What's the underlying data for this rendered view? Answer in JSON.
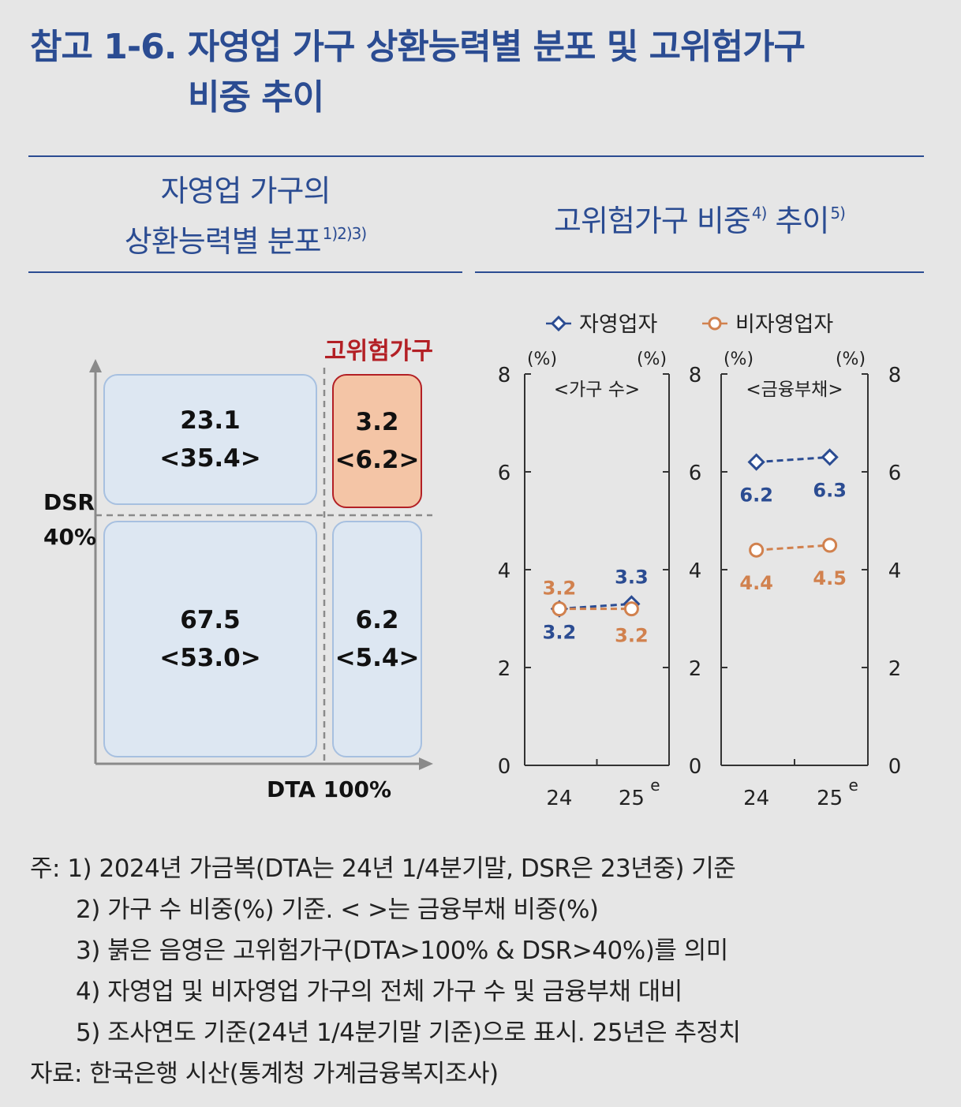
{
  "title": {
    "line1": "참고 1-6. 자영업 가구 상환능력별 분포 및 고위험가구",
    "line2": "비중 추이"
  },
  "left_panel": {
    "title_line1": "자영업 가구의",
    "title_line2": "상환능력별 분포",
    "title_notes": "1)2)3)",
    "risk_label": "고위험가구",
    "y_axis_label_1": "DSR",
    "y_axis_label_2": "40%",
    "x_axis_label": "DTA 100%",
    "cells": {
      "top_left": {
        "value": "23.1",
        "sub": "<35.4>"
      },
      "top_right": {
        "value": "3.2",
        "sub": "<6.2>"
      },
      "bottom_left": {
        "value": "67.5",
        "sub": "<53.0>"
      },
      "bottom_right": {
        "value": "6.2",
        "sub": "<5.4>"
      }
    }
  },
  "right_panel": {
    "title_main": "고위험가구 비중",
    "title_note1": "4)",
    "title_mid": "추이",
    "title_note2": "5)"
  },
  "notes": [
    "주:  1) 2024년 가금복(DTA는 24년 1/4분기말, DSR은 23년중) 기준",
    "2) 가구 수 비중(%) 기준. <     >는 금융부채 비중(%)",
    "3) 붉은 음영은 고위험가구(DTA>100% & DSR>40%)를 의미",
    "4) 자영업 및 비자영업 가구의 전체 가구 수 및 금융부채 대비",
    "5) 조사연도 기준(24년 1/4분기말 기준)으로 표시. 25년은 추정치"
  ],
  "source": "자료:  한국은행 시산(통계청 가계금융복지조사)",
  "chart_data": [
    {
      "type": "line",
      "title": "<가구 수>",
      "categories": [
        "24",
        "25"
      ],
      "category_suffix": [
        "",
        "e"
      ],
      "ylabel_left": "(%)",
      "ylabel_right": "(%)",
      "ylim": [
        0,
        8
      ],
      "yticks": [
        0,
        2,
        4,
        6,
        8
      ],
      "series": [
        {
          "name": "자영업자",
          "values": [
            3.2,
            3.3
          ],
          "color": "#2b4c92",
          "marker": "diamond"
        },
        {
          "name": "비자영업자",
          "values": [
            3.2,
            3.2
          ],
          "color": "#d1814e",
          "marker": "circle"
        }
      ]
    },
    {
      "type": "line",
      "title": "<금융부채>",
      "categories": [
        "24",
        "25"
      ],
      "category_suffix": [
        "",
        "e"
      ],
      "ylabel_left": "(%)",
      "ylabel_right": "(%)",
      "ylim": [
        0,
        8
      ],
      "yticks": [
        0,
        2,
        4,
        6,
        8
      ],
      "series": [
        {
          "name": "자영업자",
          "values": [
            6.2,
            6.3
          ],
          "color": "#2b4c92",
          "marker": "diamond"
        },
        {
          "name": "비자영업자",
          "values": [
            4.4,
            4.5
          ],
          "color": "#d1814e",
          "marker": "circle"
        }
      ]
    }
  ],
  "legend": [
    {
      "name": "자영업자",
      "color": "#2b4c92",
      "marker": "diamond"
    },
    {
      "name": "비자영업자",
      "color": "#d1814e",
      "marker": "circle"
    }
  ]
}
